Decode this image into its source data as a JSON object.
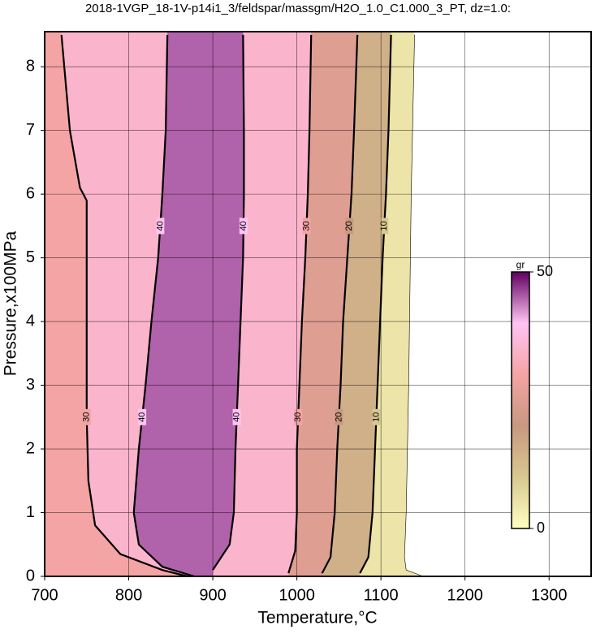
{
  "chart_data": {
    "type": "contour",
    "title": "2018-1VGP_18-1V-p14i1_3/feldspar/massgm/H2O_1.0_C1.000_3_PT, dz=1.0:",
    "x_label": "Temperature,°C",
    "y_label": "Pressure,x100MPa",
    "xlim": [
      700,
      1350
    ],
    "ylim": [
      0,
      8.55
    ],
    "xticks": [
      700,
      800,
      900,
      1000,
      1100,
      1200,
      1300
    ],
    "yticks": [
      0,
      1,
      2,
      3,
      4,
      5,
      6,
      7,
      8
    ],
    "grid": true,
    "colorscale": [
      [
        0,
        "#ffffc0"
      ],
      [
        10,
        "#d8c890"
      ],
      [
        20,
        "#c89880"
      ],
      [
        30,
        "#f4a4a4"
      ],
      [
        40,
        "#ffc4f4"
      ],
      [
        50,
        "#600060"
      ]
    ],
    "colorbar": {
      "label": "gr",
      "ticks": [
        0,
        50
      ]
    },
    "contours": [
      {
        "level": 0,
        "x": [
          1150,
          1130,
          1128,
          1130,
          1133,
          1136,
          1140
        ],
        "y": [
          0,
          0.1,
          0.3,
          1,
          3,
          6,
          8.5
        ]
      },
      {
        "level": 10,
        "x": [
          1075,
          1085,
          1090,
          1093,
          1096,
          1099,
          1102,
          1106,
          1109,
          1112
        ],
        "y": [
          0.05,
          0.3,
          1,
          2,
          3,
          4,
          5,
          6,
          7,
          8.5
        ]
      },
      {
        "level": 20,
        "x": [
          1030,
          1040,
          1045,
          1048,
          1052,
          1055,
          1060,
          1065,
          1068,
          1072
        ],
        "y": [
          0.05,
          0.3,
          1,
          2,
          3,
          4,
          5,
          6,
          7,
          8.5
        ]
      },
      {
        "level": 30,
        "x": [
          990,
          998,
          1000,
          1000,
          1003,
          1006,
          1010,
          1013,
          1015,
          1017
        ],
        "y": [
          0.05,
          0.4,
          1,
          2,
          3,
          4,
          5,
          6,
          7,
          8.5
        ]
      },
      {
        "level": 40,
        "x": [
          900,
          920,
          925,
          927,
          930,
          933,
          936,
          937,
          937,
          936
        ],
        "y": [
          0.1,
          0.5,
          1,
          2,
          3,
          4,
          5,
          6,
          7,
          8.5
        ]
      },
      {
        "level": 40,
        "x": [
          878,
          840,
          812,
          806,
          812,
          820,
          827,
          835,
          840,
          844,
          846
        ],
        "y": [
          0,
          0.15,
          0.5,
          1,
          2,
          3,
          4,
          5,
          6,
          7,
          8.5
        ]
      },
      {
        "level": 30,
        "x": [
          870,
          840,
          790,
          760,
          752,
          750,
          750,
          750,
          742,
          730,
          720
        ],
        "y": [
          0,
          0.1,
          0.35,
          0.8,
          1.5,
          2.5,
          4,
          5.9,
          6.1,
          7,
          8.5
        ]
      }
    ]
  }
}
